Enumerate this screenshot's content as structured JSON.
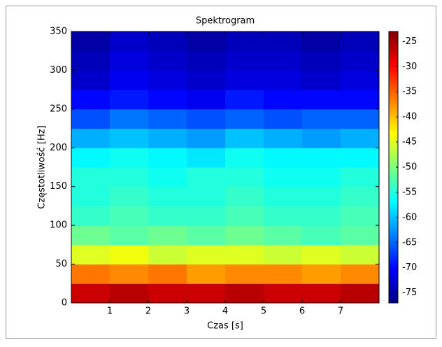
{
  "chart_data": {
    "type": "heatmap",
    "title": "Spektrogram",
    "x_label": "Czas [s]",
    "y_label": "Częstotliwość [Hz]",
    "colormap": "jet",
    "xbins": [
      0,
      1,
      2,
      3,
      4,
      5,
      6,
      7,
      8
    ],
    "ybins": [
      0,
      25,
      50,
      75,
      100,
      125,
      150,
      175,
      200,
      225,
      250,
      275,
      300,
      325,
      350
    ],
    "z": [
      [
        -27,
        -26,
        -27,
        -27,
        -26,
        -27,
        -27,
        -26
      ],
      [
        -36,
        -37,
        -36,
        -38,
        -37,
        -37,
        -38,
        -37
      ],
      [
        -45,
        -44,
        -46,
        -45,
        -45,
        -46,
        -45,
        -46
      ],
      [
        -51,
        -52,
        -51,
        -52,
        -51,
        -52,
        -53,
        -52
      ],
      [
        -54,
        -53,
        -54,
        -54,
        -53,
        -54,
        -54,
        -53
      ],
      [
        -55,
        -54,
        -55,
        -55,
        -54,
        -55,
        -55,
        -54
      ],
      [
        -55,
        -55,
        -56,
        -55,
        -55,
        -56,
        -56,
        -55
      ],
      [
        -57,
        -56,
        -57,
        -58,
        -56,
        -57,
        -57,
        -57
      ],
      [
        -61,
        -60,
        -61,
        -62,
        -60,
        -61,
        -62,
        -61
      ],
      [
        -66,
        -64,
        -65,
        -66,
        -65,
        -66,
        -65,
        -65
      ],
      [
        -70,
        -69,
        -70,
        -71,
        -69,
        -70,
        -70,
        -70
      ],
      [
        -73,
        -71,
        -72,
        -73,
        -72,
        -72,
        -73,
        -72
      ],
      [
        -74,
        -72,
        -73,
        -74,
        -73,
        -73,
        -74,
        -73
      ],
      [
        -75,
        -73,
        -74,
        -75,
        -74,
        -74,
        -75,
        -74
      ]
    ],
    "xlim": [
      0,
      8
    ],
    "xticks": [
      1,
      2,
      3,
      4,
      5,
      6,
      7
    ],
    "ylim": [
      0,
      350
    ],
    "yticks": [
      0,
      50,
      100,
      150,
      200,
      250,
      300,
      350
    ],
    "clim": [
      -77,
      -23
    ],
    "cticks": [
      -75,
      -70,
      -65,
      -60,
      -55,
      -50,
      -45,
      -40,
      -35,
      -30,
      -25
    ]
  }
}
